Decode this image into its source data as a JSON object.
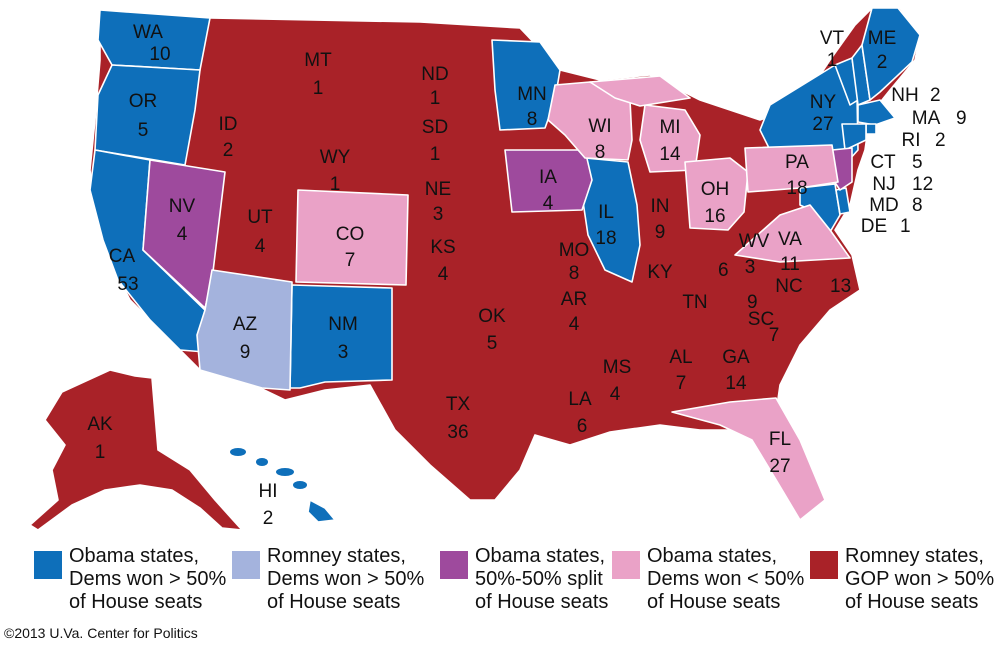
{
  "colors": {
    "obama_dem_majority": "#0e6fba",
    "romney_dem_majority": "#a4b3dd",
    "obama_split": "#9e4a9d",
    "obama_dem_minority": "#eaa2c7",
    "romney_gop_majority": "#a92228"
  },
  "states": [
    {
      "abbr": "WA",
      "seats": "10"
    },
    {
      "abbr": "OR",
      "seats": "5"
    },
    {
      "abbr": "CA",
      "seats": "53"
    },
    {
      "abbr": "NV",
      "seats": "4"
    },
    {
      "abbr": "ID",
      "seats": "2"
    },
    {
      "abbr": "MT",
      "seats": "1"
    },
    {
      "abbr": "WY",
      "seats": "1"
    },
    {
      "abbr": "UT",
      "seats": "4"
    },
    {
      "abbr": "AZ",
      "seats": "9"
    },
    {
      "abbr": "CO",
      "seats": "7"
    },
    {
      "abbr": "NM",
      "seats": "3"
    },
    {
      "abbr": "ND",
      "seats": "1"
    },
    {
      "abbr": "SD",
      "seats": "1"
    },
    {
      "abbr": "NE",
      "seats": "3"
    },
    {
      "abbr": "KS",
      "seats": "4"
    },
    {
      "abbr": "OK",
      "seats": "5"
    },
    {
      "abbr": "TX",
      "seats": "36"
    },
    {
      "abbr": "MN",
      "seats": "8"
    },
    {
      "abbr": "IA",
      "seats": "4"
    },
    {
      "abbr": "MO",
      "seats": "8"
    },
    {
      "abbr": "AR",
      "seats": "4"
    },
    {
      "abbr": "LA",
      "seats": "6"
    },
    {
      "abbr": "WI",
      "seats": "8"
    },
    {
      "abbr": "IL",
      "seats": "18"
    },
    {
      "abbr": "MI",
      "seats": "14"
    },
    {
      "abbr": "IN",
      "seats": "9"
    },
    {
      "abbr": "OH",
      "seats": "16"
    },
    {
      "abbr": "KY",
      "seats": "6"
    },
    {
      "abbr": "TN",
      "seats": "9"
    },
    {
      "abbr": "MS",
      "seats": "4"
    },
    {
      "abbr": "AL",
      "seats": "7"
    },
    {
      "abbr": "GA",
      "seats": "14"
    },
    {
      "abbr": "FL",
      "seats": "27"
    },
    {
      "abbr": "SC",
      "seats": "7"
    },
    {
      "abbr": "NC",
      "seats": "13"
    },
    {
      "abbr": "VA",
      "seats": "11"
    },
    {
      "abbr": "WV",
      "seats": "3"
    },
    {
      "abbr": "PA",
      "seats": "18"
    },
    {
      "abbr": "NY",
      "seats": "27"
    },
    {
      "abbr": "VT",
      "seats": "1"
    },
    {
      "abbr": "ME",
      "seats": "2"
    },
    {
      "abbr": "NH",
      "seats": "2"
    },
    {
      "abbr": "MA",
      "seats": "9"
    },
    {
      "abbr": "RI",
      "seats": "2"
    },
    {
      "abbr": "CT",
      "seats": "5"
    },
    {
      "abbr": "NJ",
      "seats": "12"
    },
    {
      "abbr": "MD",
      "seats": "8"
    },
    {
      "abbr": "DE",
      "seats": "1"
    },
    {
      "abbr": "AK",
      "seats": "1"
    },
    {
      "abbr": "HI",
      "seats": "2"
    }
  ],
  "legend": [
    {
      "lines": [
        "Obama states,",
        "Dems won > 50%",
        "of House seats"
      ]
    },
    {
      "lines": [
        "Romney states,",
        "Dems won > 50%",
        "of House seats"
      ]
    },
    {
      "lines": [
        "Obama states,",
        "50%-50% split",
        "of House seats"
      ]
    },
    {
      "lines": [
        "Obama states,",
        "Dems won < 50%",
        "of House seats"
      ]
    },
    {
      "lines": [
        "Romney states,",
        "GOP won > 50%",
        "of House seats"
      ]
    }
  ],
  "credit": "©2013 U.Va. Center for Politics"
}
